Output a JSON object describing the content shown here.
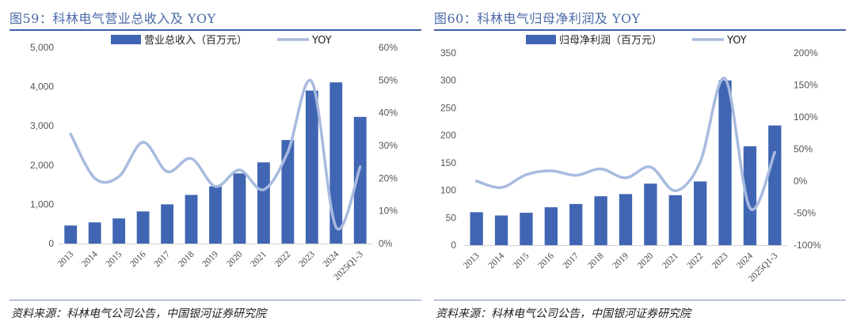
{
  "source_text": "资料来源：科林电气公司公告，中国银河证券研究院",
  "colors": {
    "bar": "#4066b3",
    "line": "#a8badf",
    "title": "#4a6aa8"
  },
  "chart_data": [
    {
      "type": "bar",
      "title": "图59：科林电气营业总收入及 YOY",
      "categories": [
        "2013",
        "2014",
        "2015",
        "2016",
        "2017",
        "2018",
        "2019",
        "2020",
        "2021",
        "2022",
        "2023",
        "2024",
        "2025Q1-3"
      ],
      "series": [
        {
          "name": "营业总收入（百万元）",
          "type": "bar",
          "axis": "left",
          "values": [
            460,
            540,
            640,
            820,
            1000,
            1240,
            1460,
            1790,
            2070,
            2640,
            3900,
            4110,
            3230
          ]
        },
        {
          "name": "YOY",
          "type": "line",
          "axis": "right",
          "unit": "%",
          "values": [
            33.5,
            20,
            20.5,
            31,
            22,
            26,
            17.5,
            22.5,
            16.5,
            28,
            49.5,
            5,
            23.5
          ]
        }
      ],
      "y_left": {
        "min": 0,
        "max": 5000,
        "ticks": [
          0,
          1000,
          2000,
          3000,
          4000,
          5000
        ],
        "tick_labels": [
          "0",
          "1,000",
          "2,000",
          "3,000",
          "4,000",
          "5,000"
        ]
      },
      "y_right": {
        "min": 0,
        "max": 60,
        "ticks": [
          0,
          10,
          20,
          30,
          40,
          50,
          60
        ],
        "tick_labels": [
          "0%",
          "10%",
          "20%",
          "30%",
          "40%",
          "50%",
          "60%"
        ]
      }
    },
    {
      "type": "bar",
      "title": "图60：科林电气归母净利润及 YOY",
      "categories": [
        "2013",
        "2014",
        "2015",
        "2016",
        "2017",
        "2018",
        "2019",
        "2020",
        "2021",
        "2022",
        "2023",
        "2024",
        "2025Q1-3"
      ],
      "series": [
        {
          "name": "归母净利润（百万元）",
          "type": "bar",
          "axis": "left",
          "values": [
            60,
            54,
            59,
            69,
            75,
            89,
            93,
            112,
            91,
            116,
            300,
            180,
            218
          ]
        },
        {
          "name": "YOY",
          "type": "line",
          "axis": "right",
          "unit": "%",
          "values": [
            0,
            -10,
            10,
            16,
            9,
            19,
            5,
            22,
            -15,
            30,
            160,
            -42,
            45
          ]
        }
      ],
      "y_left": {
        "min": 0,
        "max": 350,
        "ticks": [
          0,
          50,
          100,
          150,
          200,
          250,
          300,
          350
        ],
        "tick_labels": [
          "0",
          "50",
          "100",
          "150",
          "200",
          "250",
          "300",
          "350"
        ]
      },
      "y_right": {
        "min": -100,
        "max": 200,
        "ticks": [
          -100,
          -50,
          0,
          50,
          100,
          150,
          200
        ],
        "tick_labels": [
          "-100%",
          "-50%",
          "0%",
          "50%",
          "100%",
          "150%",
          "200%"
        ]
      }
    }
  ]
}
